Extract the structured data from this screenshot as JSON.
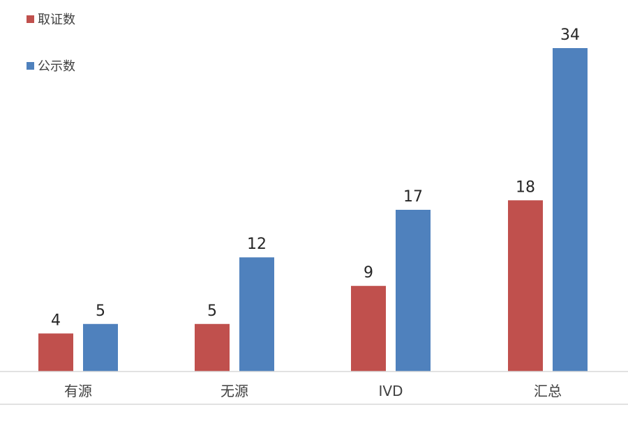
{
  "chart_data": {
    "type": "bar",
    "title": "",
    "xlabel": "",
    "ylabel": "",
    "categories": [
      "有源",
      "无源",
      "IVD",
      "汇总"
    ],
    "series": [
      {
        "name": "取证数",
        "values": [
          4,
          5,
          9,
          18
        ],
        "color": "#C0504D"
      },
      {
        "name": "公示数",
        "values": [
          5,
          12,
          17,
          34
        ],
        "color": "#4F81BD"
      }
    ],
    "ylim": [
      0,
      34
    ],
    "grid": false,
    "legend": "top-left",
    "data_labels": true
  }
}
